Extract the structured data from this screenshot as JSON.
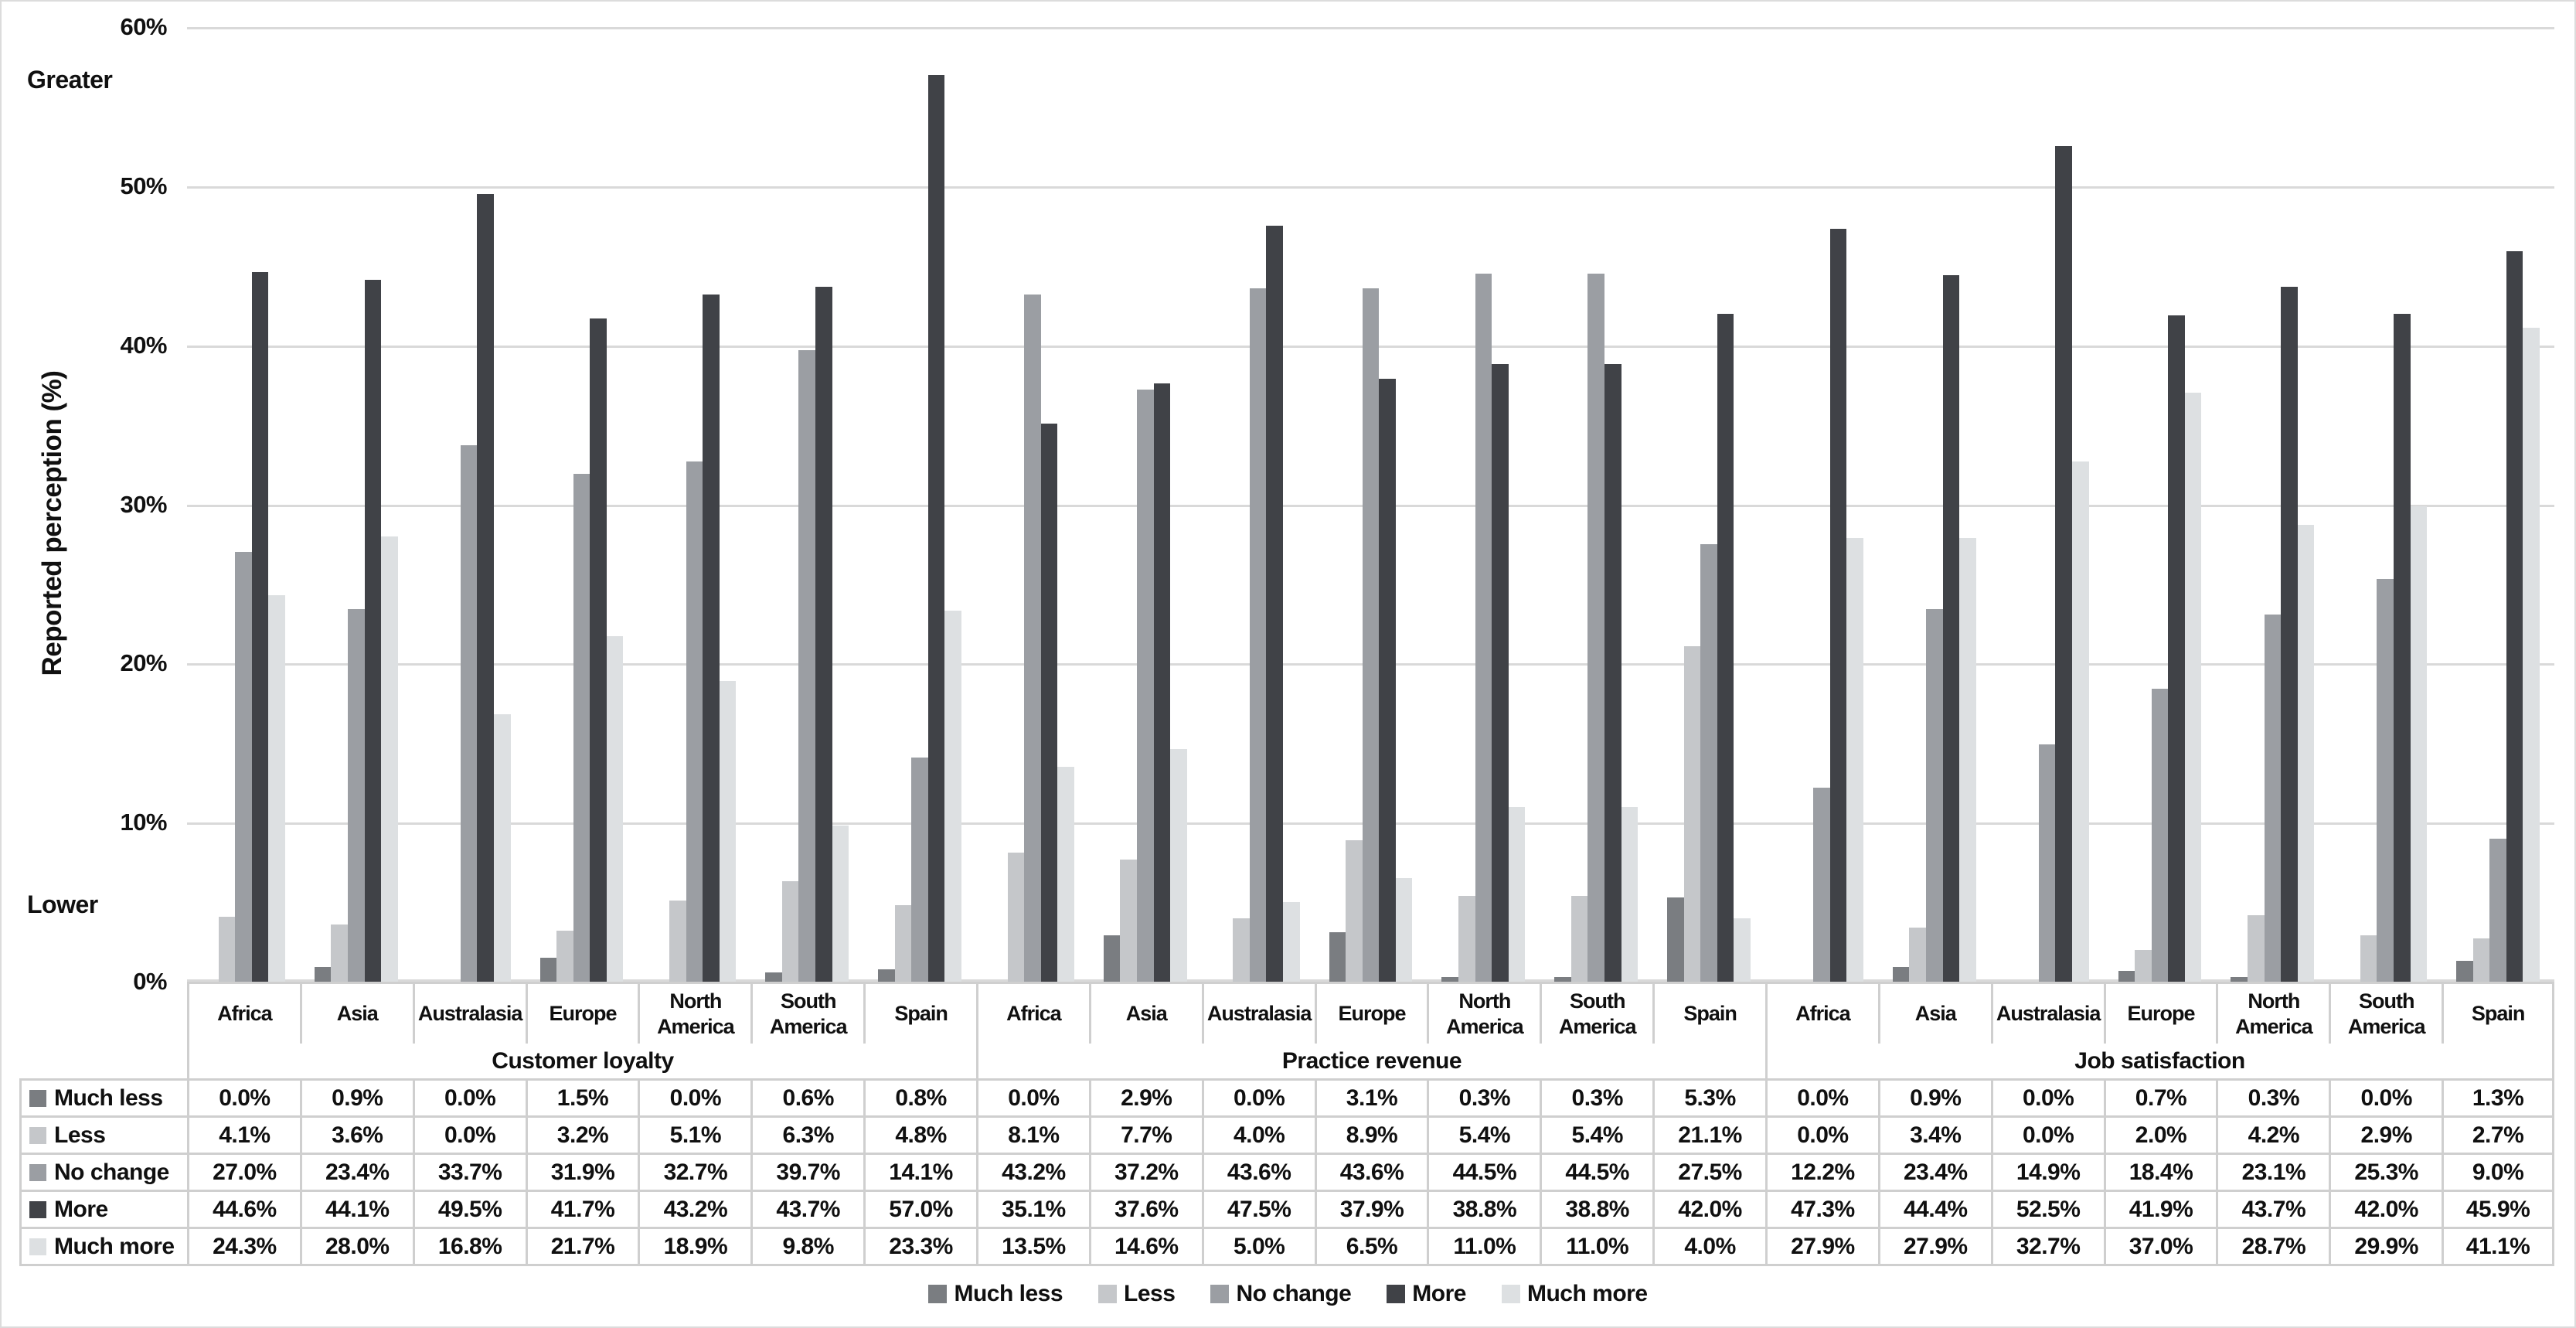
{
  "chart_data": {
    "type": "bar",
    "title": "",
    "ylabel": "Reported perception (%)",
    "xlabel": "",
    "grid": "horizontal",
    "legend_position": "bottom",
    "value_format": "one_decimal_percent",
    "y_axis": {
      "min": 0,
      "max": 60,
      "step": 10,
      "tick_labels": [
        "0%",
        "10%",
        "20%",
        "30%",
        "40%",
        "50%",
        "60%"
      ]
    },
    "axis_annotations": {
      "top": "Greater",
      "bottom": "Lower"
    },
    "sections": [
      "Customer loyalty",
      "Practice revenue",
      "Job satisfaction"
    ],
    "categories": [
      "Africa",
      "Asia",
      "Australasia",
      "Europe",
      "North America",
      "South America",
      "Spain"
    ],
    "series": [
      {
        "name": "Much less",
        "color": "#7a7d81",
        "values_by_section": [
          [
            0.0,
            0.9,
            0.0,
            1.5,
            0.0,
            0.6,
            0.8
          ],
          [
            0.0,
            2.9,
            0.0,
            3.1,
            0.3,
            0.3,
            5.3
          ],
          [
            0.0,
            0.9,
            0.0,
            0.7,
            0.3,
            0.0,
            1.3
          ]
        ]
      },
      {
        "name": "Less",
        "color": "#c5c7ca",
        "values_by_section": [
          [
            4.1,
            3.6,
            0.0,
            3.2,
            5.1,
            6.3,
            4.8
          ],
          [
            8.1,
            7.7,
            4.0,
            8.9,
            5.4,
            5.4,
            21.1
          ],
          [
            0.0,
            3.4,
            0.0,
            2.0,
            4.2,
            2.9,
            2.7
          ]
        ]
      },
      {
        "name": "No change",
        "color": "#9b9ea3",
        "values_by_section": [
          [
            27.0,
            23.4,
            33.7,
            31.9,
            32.7,
            39.7,
            14.1
          ],
          [
            43.2,
            37.2,
            43.6,
            43.6,
            44.5,
            44.5,
            27.5
          ],
          [
            12.2,
            23.4,
            14.9,
            18.4,
            23.1,
            25.3,
            9.0
          ]
        ]
      },
      {
        "name": "More",
        "color": "#404247",
        "values_by_section": [
          [
            44.6,
            44.1,
            49.5,
            41.7,
            43.2,
            43.7,
            57.0
          ],
          [
            35.1,
            37.6,
            47.5,
            37.9,
            38.8,
            38.8,
            42.0
          ],
          [
            47.3,
            44.4,
            52.5,
            41.9,
            43.7,
            42.0,
            45.9
          ]
        ]
      },
      {
        "name": "Much more",
        "color": "#dde0e2",
        "values_by_section": [
          [
            24.3,
            28.0,
            16.8,
            21.7,
            18.9,
            9.8,
            23.3
          ],
          [
            13.5,
            14.6,
            5.0,
            6.5,
            11.0,
            11.0,
            4.0
          ],
          [
            27.9,
            27.9,
            32.7,
            37.0,
            28.7,
            29.9,
            41.1
          ]
        ]
      }
    ]
  },
  "style_colors": {
    "gridline": "#d9d9d9",
    "table_border": "#cfcfcf",
    "text": "#101010"
  }
}
